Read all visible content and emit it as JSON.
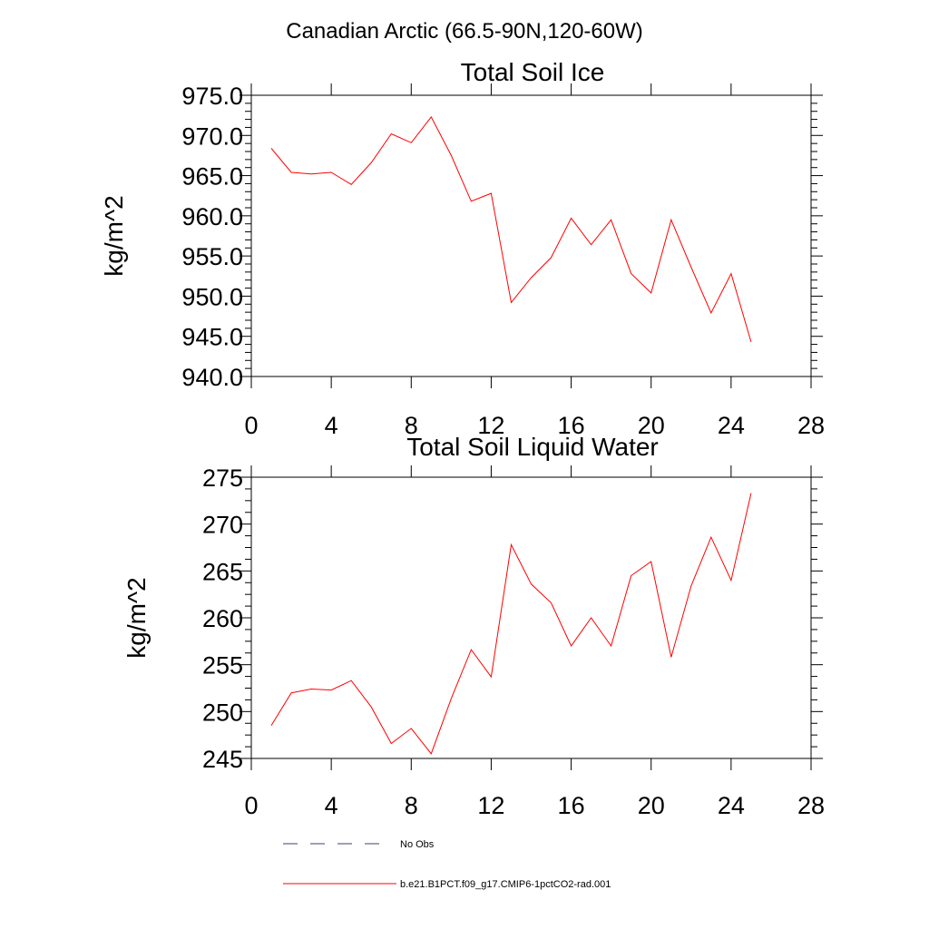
{
  "main_title": "Canadian Arctic (66.5-90N,120-60W)",
  "chart_data": [
    {
      "type": "line",
      "title": "Total Soil Ice",
      "xlabel": "",
      "ylabel": "kg/m^2",
      "xlim": [
        0,
        28
      ],
      "ylim": [
        940,
        975
      ],
      "xticks": [
        "0",
        "4",
        "8",
        "12",
        "16",
        "20",
        "24",
        "28"
      ],
      "yticks": [
        "940.0",
        "945.0",
        "950.0",
        "955.0",
        "960.0",
        "965.0",
        "970.0",
        "975.0"
      ],
      "grid": false,
      "series": [
        {
          "name": "b.e21.B1PCT.f09_g17.CMIP6-1pctCO2-rad.001",
          "color": "#ff0000",
          "x": [
            1,
            2,
            3,
            4,
            5,
            6,
            7,
            8,
            9,
            10,
            11,
            12,
            13,
            14,
            15,
            16,
            17,
            18,
            19,
            20,
            21,
            22,
            23,
            24,
            25
          ],
          "y": [
            968.4,
            965.4,
            965.2,
            965.4,
            963.9,
            966.6,
            970.2,
            969.1,
            972.3,
            967.5,
            961.8,
            962.8,
            949.2,
            952.3,
            954.8,
            959.7,
            956.4,
            959.5,
            952.8,
            950.4,
            959.5,
            953.6,
            947.9,
            952.8,
            944.3
          ]
        }
      ]
    },
    {
      "type": "line",
      "title": "Total Soil Liquid Water",
      "xlabel": "",
      "ylabel": "kg/m^2",
      "xlim": [
        0,
        28
      ],
      "ylim": [
        245,
        275
      ],
      "xticks": [
        "0",
        "4",
        "8",
        "12",
        "16",
        "20",
        "24",
        "28"
      ],
      "yticks": [
        "245",
        "250",
        "255",
        "260",
        "265",
        "270",
        "275"
      ],
      "grid": false,
      "series": [
        {
          "name": "b.e21.B1PCT.f09_g17.CMIP6-1pctCO2-rad.001",
          "color": "#ff0000",
          "x": [
            1,
            2,
            3,
            4,
            5,
            6,
            7,
            8,
            9,
            10,
            11,
            12,
            13,
            14,
            15,
            16,
            17,
            18,
            19,
            20,
            21,
            22,
            23,
            24,
            25
          ],
          "y": [
            248.5,
            252.0,
            252.4,
            252.3,
            253.3,
            250.5,
            246.6,
            248.2,
            245.5,
            251.4,
            256.6,
            253.7,
            267.8,
            263.6,
            261.6,
            257.0,
            260.0,
            257.0,
            264.5,
            266.0,
            255.8,
            263.4,
            268.6,
            264.0,
            273.3
          ]
        }
      ]
    }
  ],
  "legend": {
    "placement": "bottom",
    "entries": [
      {
        "label": "No Obs",
        "style": "dashed",
        "color": "#404070"
      },
      {
        "label": "b.e21.B1PCT.f09_g17.CMIP6-1pctCO2-rad.001",
        "style": "solid",
        "color": "#ff0000"
      }
    ]
  }
}
